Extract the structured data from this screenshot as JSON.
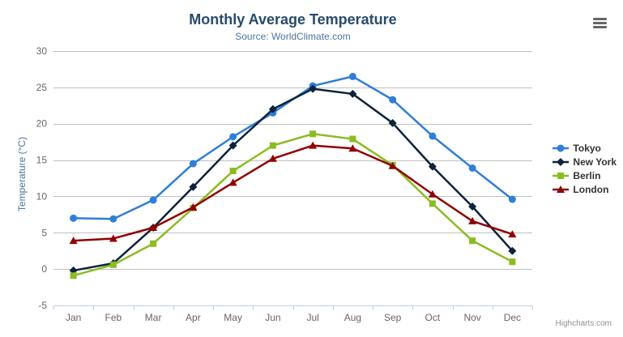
{
  "chart": {
    "title": "Monthly Average Temperature",
    "subtitle": "Source: WorldClimate.com",
    "credits_label": "Highcharts.com",
    "export_menu_icon": "hamburger-icon"
  },
  "colors": {
    "title": "#274b6d",
    "subtitle": "#4d759e",
    "axis_title": "#4d759e",
    "axis_label": "#666666",
    "gridline": "#c0c0c0",
    "axis_line": "#c0d0e0",
    "legend_text": "#333333",
    "credits": "#909090",
    "menu_icon": "#666666",
    "background": "#ffffff"
  },
  "legend": {
    "position": "right",
    "items": [
      "Tokyo",
      "New York",
      "Berlin",
      "London"
    ]
  },
  "chart_data": {
    "type": "line",
    "title": "Monthly Average Temperature",
    "subtitle": "Source: WorldClimate.com",
    "xlabel": "",
    "ylabel": "Temperature (°C)",
    "ylim": [
      -5,
      30
    ],
    "yticks": [
      -5,
      0,
      5,
      10,
      15,
      20,
      25,
      30
    ],
    "grid": true,
    "legend_position": "right",
    "categories": [
      "Jan",
      "Feb",
      "Mar",
      "Apr",
      "May",
      "Jun",
      "Jul",
      "Aug",
      "Sep",
      "Oct",
      "Nov",
      "Dec"
    ],
    "series": [
      {
        "name": "Tokyo",
        "color": "#2f7ed8",
        "marker": "circle",
        "values": [
          7.0,
          6.9,
          9.5,
          14.5,
          18.2,
          21.5,
          25.2,
          26.5,
          23.3,
          18.3,
          13.9,
          9.6
        ]
      },
      {
        "name": "New York",
        "color": "#0d233a",
        "marker": "diamond",
        "values": [
          -0.2,
          0.8,
          5.7,
          11.3,
          17.0,
          22.0,
          24.8,
          24.1,
          20.1,
          14.1,
          8.6,
          2.5
        ]
      },
      {
        "name": "Berlin",
        "color": "#8bbc21",
        "marker": "square",
        "values": [
          -0.9,
          0.6,
          3.5,
          8.4,
          13.5,
          17.0,
          18.6,
          17.9,
          14.3,
          9.0,
          3.9,
          1.0
        ]
      },
      {
        "name": "London",
        "color": "#910000",
        "marker": "triangle",
        "values": [
          3.9,
          4.2,
          5.7,
          8.5,
          11.9,
          15.2,
          17.0,
          16.6,
          14.2,
          10.3,
          6.6,
          4.8
        ]
      }
    ]
  }
}
